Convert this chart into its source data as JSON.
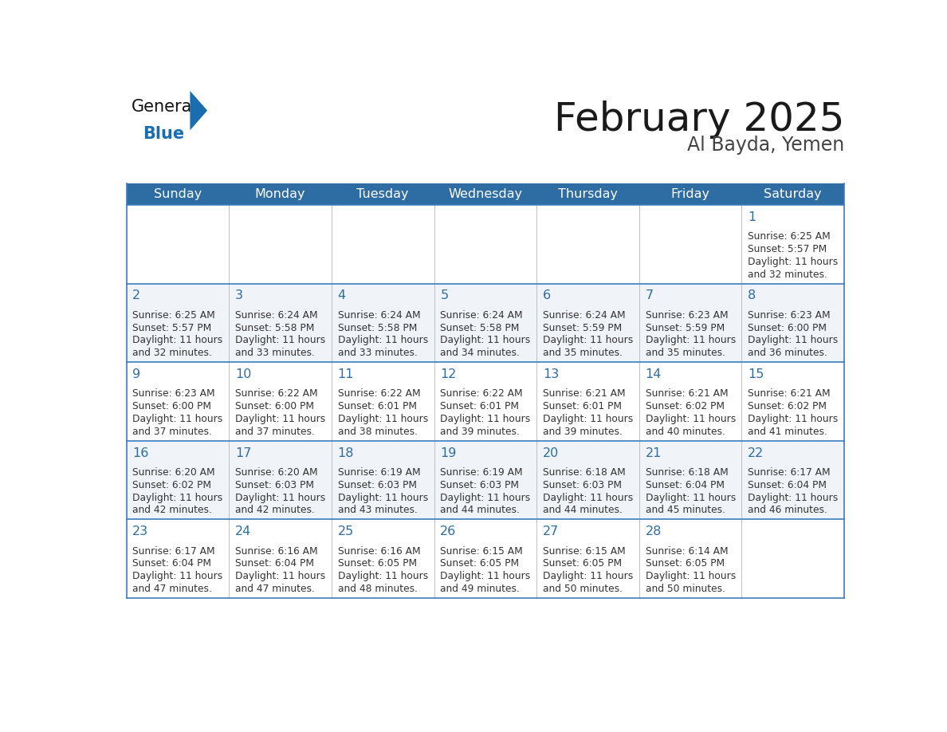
{
  "title": "February 2025",
  "subtitle": "Al Bayda, Yemen",
  "header_bg": "#2E6DA4",
  "header_text_color": "#FFFFFF",
  "cell_bg_white": "#FFFFFF",
  "cell_bg_gray": "#F0F4F8",
  "border_color": "#2E6DA4",
  "row_separator_color": "#3a7dbf",
  "col_separator_color": "#AAAAAA",
  "day_headers": [
    "Sunday",
    "Monday",
    "Tuesday",
    "Wednesday",
    "Thursday",
    "Friday",
    "Saturday"
  ],
  "title_color": "#1a1a1a",
  "subtitle_color": "#444444",
  "day_number_color": "#2E6DA4",
  "text_color": "#333333",
  "logo_general_color": "#111111",
  "logo_blue_color": "#1a6daf",
  "logo_triangle_color": "#1a6daf",
  "calendar_data": [
    [
      null,
      null,
      null,
      null,
      null,
      null,
      {
        "day": 1,
        "sunrise": "6:25 AM",
        "sunset": "5:57 PM",
        "daylight_hrs": "11 hours",
        "daylight_min": "and 32 minutes."
      }
    ],
    [
      {
        "day": 2,
        "sunrise": "6:25 AM",
        "sunset": "5:57 PM",
        "daylight_hrs": "11 hours",
        "daylight_min": "and 32 minutes."
      },
      {
        "day": 3,
        "sunrise": "6:24 AM",
        "sunset": "5:58 PM",
        "daylight_hrs": "11 hours",
        "daylight_min": "and 33 minutes."
      },
      {
        "day": 4,
        "sunrise": "6:24 AM",
        "sunset": "5:58 PM",
        "daylight_hrs": "11 hours",
        "daylight_min": "and 33 minutes."
      },
      {
        "day": 5,
        "sunrise": "6:24 AM",
        "sunset": "5:58 PM",
        "daylight_hrs": "11 hours",
        "daylight_min": "and 34 minutes."
      },
      {
        "day": 6,
        "sunrise": "6:24 AM",
        "sunset": "5:59 PM",
        "daylight_hrs": "11 hours",
        "daylight_min": "and 35 minutes."
      },
      {
        "day": 7,
        "sunrise": "6:23 AM",
        "sunset": "5:59 PM",
        "daylight_hrs": "11 hours",
        "daylight_min": "and 35 minutes."
      },
      {
        "day": 8,
        "sunrise": "6:23 AM",
        "sunset": "6:00 PM",
        "daylight_hrs": "11 hours",
        "daylight_min": "and 36 minutes."
      }
    ],
    [
      {
        "day": 9,
        "sunrise": "6:23 AM",
        "sunset": "6:00 PM",
        "daylight_hrs": "11 hours",
        "daylight_min": "and 37 minutes."
      },
      {
        "day": 10,
        "sunrise": "6:22 AM",
        "sunset": "6:00 PM",
        "daylight_hrs": "11 hours",
        "daylight_min": "and 37 minutes."
      },
      {
        "day": 11,
        "sunrise": "6:22 AM",
        "sunset": "6:01 PM",
        "daylight_hrs": "11 hours",
        "daylight_min": "and 38 minutes."
      },
      {
        "day": 12,
        "sunrise": "6:22 AM",
        "sunset": "6:01 PM",
        "daylight_hrs": "11 hours",
        "daylight_min": "and 39 minutes."
      },
      {
        "day": 13,
        "sunrise": "6:21 AM",
        "sunset": "6:01 PM",
        "daylight_hrs": "11 hours",
        "daylight_min": "and 39 minutes."
      },
      {
        "day": 14,
        "sunrise": "6:21 AM",
        "sunset": "6:02 PM",
        "daylight_hrs": "11 hours",
        "daylight_min": "and 40 minutes."
      },
      {
        "day": 15,
        "sunrise": "6:21 AM",
        "sunset": "6:02 PM",
        "daylight_hrs": "11 hours",
        "daylight_min": "and 41 minutes."
      }
    ],
    [
      {
        "day": 16,
        "sunrise": "6:20 AM",
        "sunset": "6:02 PM",
        "daylight_hrs": "11 hours",
        "daylight_min": "and 42 minutes."
      },
      {
        "day": 17,
        "sunrise": "6:20 AM",
        "sunset": "6:03 PM",
        "daylight_hrs": "11 hours",
        "daylight_min": "and 42 minutes."
      },
      {
        "day": 18,
        "sunrise": "6:19 AM",
        "sunset": "6:03 PM",
        "daylight_hrs": "11 hours",
        "daylight_min": "and 43 minutes."
      },
      {
        "day": 19,
        "sunrise": "6:19 AM",
        "sunset": "6:03 PM",
        "daylight_hrs": "11 hours",
        "daylight_min": "and 44 minutes."
      },
      {
        "day": 20,
        "sunrise": "6:18 AM",
        "sunset": "6:03 PM",
        "daylight_hrs": "11 hours",
        "daylight_min": "and 44 minutes."
      },
      {
        "day": 21,
        "sunrise": "6:18 AM",
        "sunset": "6:04 PM",
        "daylight_hrs": "11 hours",
        "daylight_min": "and 45 minutes."
      },
      {
        "day": 22,
        "sunrise": "6:17 AM",
        "sunset": "6:04 PM",
        "daylight_hrs": "11 hours",
        "daylight_min": "and 46 minutes."
      }
    ],
    [
      {
        "day": 23,
        "sunrise": "6:17 AM",
        "sunset": "6:04 PM",
        "daylight_hrs": "11 hours",
        "daylight_min": "and 47 minutes."
      },
      {
        "day": 24,
        "sunrise": "6:16 AM",
        "sunset": "6:04 PM",
        "daylight_hrs": "11 hours",
        "daylight_min": "and 47 minutes."
      },
      {
        "day": 25,
        "sunrise": "6:16 AM",
        "sunset": "6:05 PM",
        "daylight_hrs": "11 hours",
        "daylight_min": "and 48 minutes."
      },
      {
        "day": 26,
        "sunrise": "6:15 AM",
        "sunset": "6:05 PM",
        "daylight_hrs": "11 hours",
        "daylight_min": "and 49 minutes."
      },
      {
        "day": 27,
        "sunrise": "6:15 AM",
        "sunset": "6:05 PM",
        "daylight_hrs": "11 hours",
        "daylight_min": "and 50 minutes."
      },
      {
        "day": 28,
        "sunrise": "6:14 AM",
        "sunset": "6:05 PM",
        "daylight_hrs": "11 hours",
        "daylight_min": "and 50 minutes."
      },
      null
    ]
  ]
}
